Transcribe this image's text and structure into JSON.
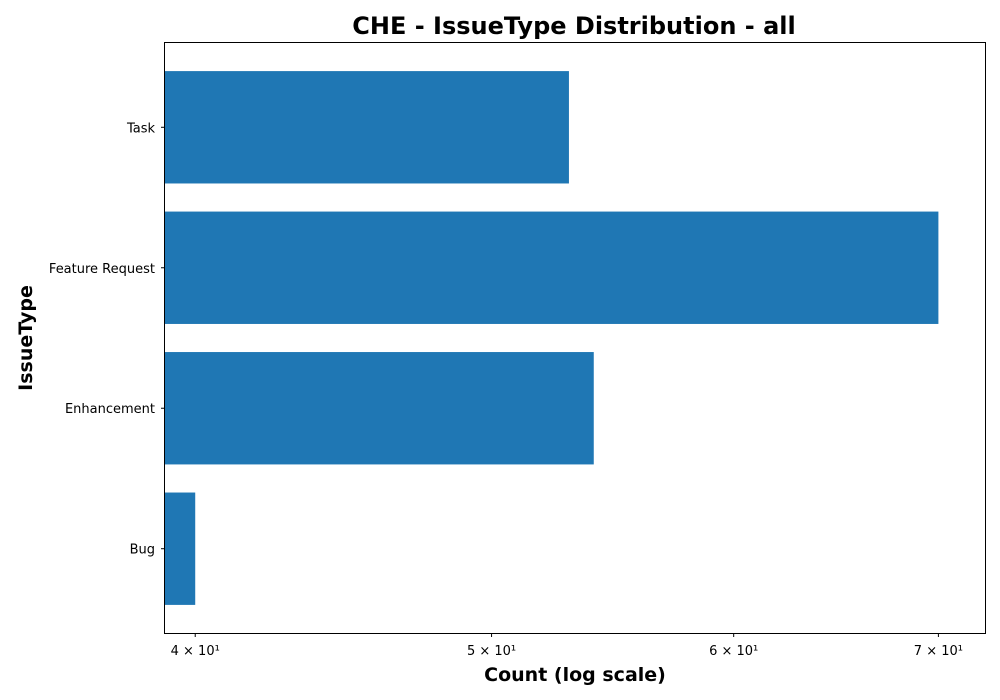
{
  "chart_data": {
    "type": "bar",
    "orientation": "horizontal",
    "title": "CHE - IssueType Distribution - all",
    "xlabel": "Count (log scale)",
    "ylabel": "IssueType",
    "x_scale": "log",
    "xlim": [
      39.1,
      72.5
    ],
    "x_ticks": [
      {
        "value": 40,
        "label": "4 × 10¹"
      },
      {
        "value": 50,
        "label": "5 × 10¹"
      },
      {
        "value": 60,
        "label": "6 × 10¹"
      },
      {
        "value": 70,
        "label": "7 × 10¹"
      }
    ],
    "categories": [
      "Bug",
      "Enhancement",
      "Feature Request",
      "Task"
    ],
    "values": [
      40,
      54,
      70,
      53
    ],
    "bar_color": "#1f77b4",
    "grid": false
  }
}
